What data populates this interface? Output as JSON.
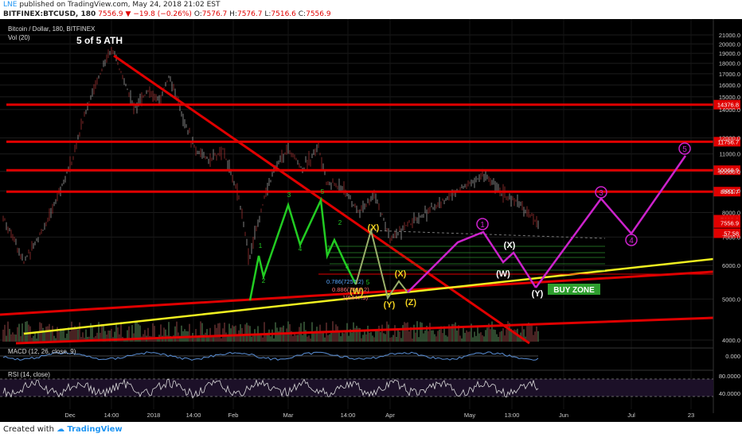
{
  "header": {
    "brand": "LNE",
    "published": "published on TradingView.com, May 24, 2018 21:02 EST",
    "symbol": "BITFINEX:BTCUSD, 180",
    "last": "7556.9",
    "change": "−19.8 (−0.26%)",
    "o_label": "O:",
    "o": "7576.7",
    "h_label": "H:",
    "h": "7576.7",
    "l_label": "L:",
    "l": "7516.6",
    "c_label": "C:",
    "c": "7556.9"
  },
  "legend": {
    "title": "Bitcoin / Dollar, 180, BITFINEX",
    "vol": "Vol (20)",
    "macd": "MACD (12, 26, close, 9)",
    "rsi": "RSI (14, close)"
  },
  "footer": {
    "created": "Created with",
    "brand": "TradingView"
  },
  "colors": {
    "red": "#e00000",
    "yellow": "#f0f020",
    "green": "#22cc22",
    "magenta": "#cc22cc",
    "white": "#ffffff"
  },
  "chart_data": {
    "type": "line",
    "y_axis": {
      "scale": "log",
      "ticks": [
        "21000.0",
        "20000.0",
        "19000.0",
        "18000.0",
        "17000.0",
        "16000.0",
        "15000.0",
        "14000.0",
        "12000.0",
        "11000.0",
        "10000.0",
        "9000.0",
        "8000.0",
        "7000.0",
        "6000.0",
        "5000.0",
        "4000.0"
      ]
    },
    "x_ticks": [
      "Dec",
      "14:00",
      "2018",
      "14:00",
      "Feb",
      "Mar",
      "14:00",
      "Apr",
      "May",
      "13:00",
      "Jun",
      "Jul",
      "23"
    ],
    "price_labels": [
      {
        "text": "14376.8",
        "price": 14376.8,
        "color": "#e00000"
      },
      {
        "text": "11756.7",
        "price": 11756.7,
        "color": "#e00000"
      },
      {
        "text": "10068.9",
        "price": 10068.9,
        "color": "#e00000"
      },
      {
        "text": "8961.7",
        "price": 8961.7,
        "color": "#e00000"
      },
      {
        "text": "7693.8",
        "price": 7693.8,
        "color": "#e00000"
      },
      {
        "text": "7556.9",
        "price": 7556.9,
        "color": "#e00000"
      },
      {
        "text": "57:58",
        "price": 7150,
        "color": "#e00000"
      }
    ],
    "horizontal_levels": [
      14376.8,
      11756.7,
      10068.9,
      8961.7
    ],
    "annotations": {
      "ath": "5 of 5 ATH",
      "buy_zone": "BUY ZONE",
      "green_labels": [
        "1",
        "2",
        "3",
        "4",
        "5",
        "1",
        "2",
        "3",
        "4",
        "5"
      ],
      "wave_labels": [
        "(X)",
        "(W)",
        "(Y)",
        "(Z)",
        "(X)",
        "(W)",
        "(Y)",
        "(X)",
        "(Y)"
      ],
      "target_labels": [
        "1",
        "3",
        "4",
        "5"
      ],
      "fib_labels": [
        "0.786(7257.2)",
        "0.886(7032.2)",
        "1(6447.9)"
      ]
    },
    "macd": {
      "ticks": [
        "0.000"
      ]
    },
    "rsi": {
      "ticks": [
        "80.0000",
        "40.0000"
      ]
    }
  }
}
